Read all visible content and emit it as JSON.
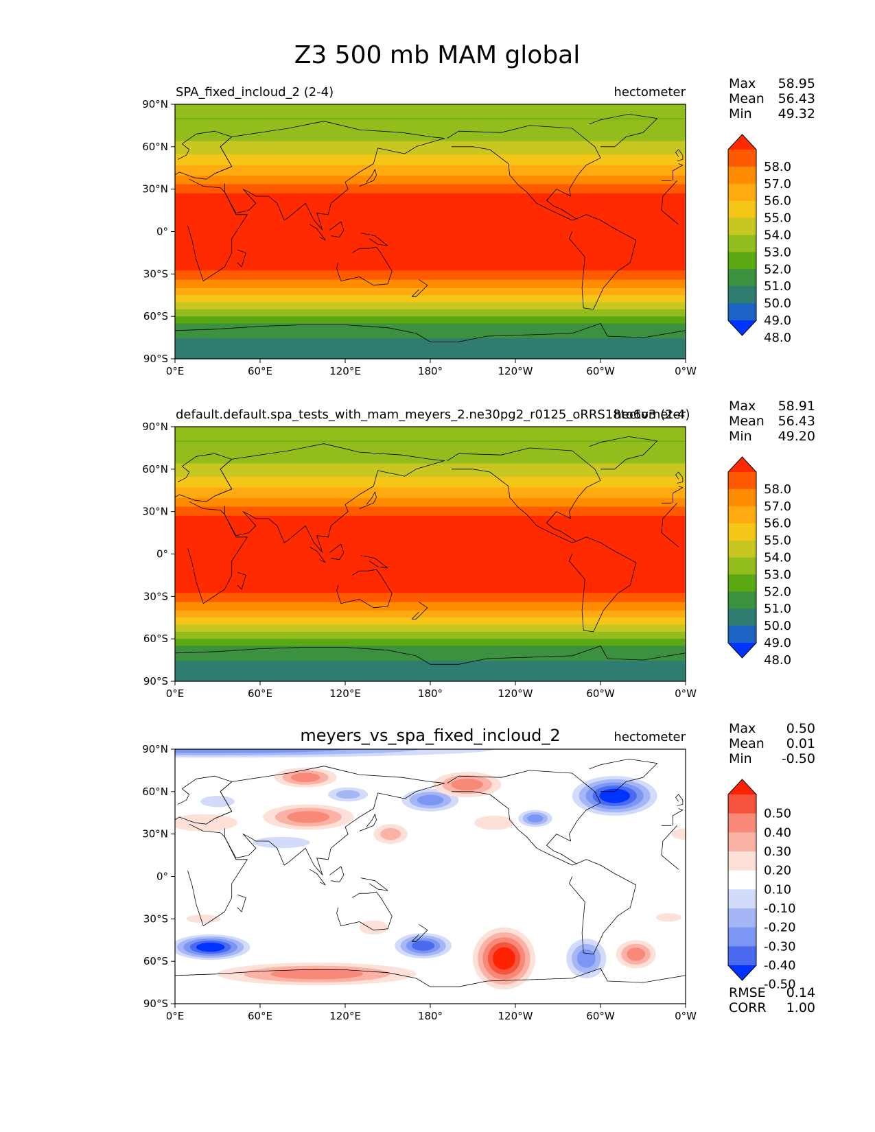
{
  "chart_data": {
    "type": "heatmap",
    "title": "Z3 500 mb MAM global",
    "x_ticks": [
      "0°E",
      "60°E",
      "120°E",
      "180°",
      "120°W",
      "60°W",
      "0°W"
    ],
    "y_ticks": [
      "90°N",
      "60°N",
      "30°N",
      "0°",
      "30°S",
      "60°S",
      "90°S"
    ],
    "xlim": [
      0,
      360
    ],
    "ylim": [
      -90,
      90
    ],
    "panels": [
      {
        "id": "test",
        "left_title": "SPA_fixed_incloud_2 (2-4)",
        "center_title": "",
        "units": "hectometer",
        "stats": [
          {
            "label": "Max",
            "value": "58.95"
          },
          {
            "label": "Mean",
            "value": "56.43"
          },
          {
            "label": "Min",
            "value": "49.32"
          }
        ],
        "levels": [
          "58.0",
          "57.0",
          "56.0",
          "55.0",
          "54.0",
          "53.0",
          "52.0",
          "51.0",
          "50.0",
          "49.0",
          "48.0"
        ],
        "colors": [
          "#ff2a00",
          "#ff5a00",
          "#ff8c00",
          "#ffaa11",
          "#f5c518",
          "#c8c620",
          "#93bd1c",
          "#5aa814",
          "#3b9140",
          "#2e7d70",
          "#1c63c4",
          "#0033ff"
        ],
        "zonal_profile": [
          {
            "lat": 90,
            "value": 52.2
          },
          {
            "lat": 80,
            "value": 52.0
          },
          {
            "lat": 70,
            "value": 52.6
          },
          {
            "lat": 60,
            "value": 53.3
          },
          {
            "lat": 50,
            "value": 54.6
          },
          {
            "lat": 45,
            "value": 55.3
          },
          {
            "lat": 40,
            "value": 56.0
          },
          {
            "lat": 35,
            "value": 56.8
          },
          {
            "lat": 30,
            "value": 57.6
          },
          {
            "lat": 25,
            "value": 58.3
          },
          {
            "lat": 0,
            "value": 58.8
          },
          {
            "lat": -25,
            "value": 58.3
          },
          {
            "lat": -30,
            "value": 57.6
          },
          {
            "lat": -35,
            "value": 56.8
          },
          {
            "lat": -40,
            "value": 56.0
          },
          {
            "lat": -45,
            "value": 55.0
          },
          {
            "lat": -50,
            "value": 54.0
          },
          {
            "lat": -55,
            "value": 53.0
          },
          {
            "lat": -60,
            "value": 52.0
          },
          {
            "lat": -65,
            "value": 51.0
          },
          {
            "lat": -72,
            "value": 50.3
          },
          {
            "lat": -80,
            "value": 49.6
          },
          {
            "lat": -90,
            "value": 49.4
          }
        ]
      },
      {
        "id": "reference",
        "left_title": "default.default.spa_tests_with_mam_meyers_2.ne30pg2_r0125_oRRS18to6v3 (2-4)",
        "center_title": "",
        "units": "hectometer",
        "stats": [
          {
            "label": "Max",
            "value": "58.91"
          },
          {
            "label": "Mean",
            "value": "56.43"
          },
          {
            "label": "Min",
            "value": "49.20"
          }
        ],
        "levels": [
          "58.0",
          "57.0",
          "56.0",
          "55.0",
          "54.0",
          "53.0",
          "52.0",
          "51.0",
          "50.0",
          "49.0",
          "48.0"
        ],
        "colors": [
          "#ff2a00",
          "#ff5a00",
          "#ff8c00",
          "#ffaa11",
          "#f5c518",
          "#c8c620",
          "#93bd1c",
          "#5aa814",
          "#3b9140",
          "#2e7d70",
          "#1c63c4",
          "#0033ff"
        ],
        "zonal_profile": [
          {
            "lat": 90,
            "value": 52.2
          },
          {
            "lat": 80,
            "value": 52.0
          },
          {
            "lat": 70,
            "value": 52.6
          },
          {
            "lat": 60,
            "value": 53.3
          },
          {
            "lat": 50,
            "value": 54.6
          },
          {
            "lat": 45,
            "value": 55.3
          },
          {
            "lat": 40,
            "value": 56.0
          },
          {
            "lat": 35,
            "value": 56.8
          },
          {
            "lat": 30,
            "value": 57.6
          },
          {
            "lat": 25,
            "value": 58.3
          },
          {
            "lat": 0,
            "value": 58.8
          },
          {
            "lat": -25,
            "value": 58.3
          },
          {
            "lat": -30,
            "value": 57.6
          },
          {
            "lat": -35,
            "value": 56.8
          },
          {
            "lat": -40,
            "value": 56.0
          },
          {
            "lat": -45,
            "value": 55.0
          },
          {
            "lat": -50,
            "value": 54.0
          },
          {
            "lat": -55,
            "value": 53.0
          },
          {
            "lat": -60,
            "value": 52.0
          },
          {
            "lat": -65,
            "value": 51.0
          },
          {
            "lat": -72,
            "value": 50.3
          },
          {
            "lat": -80,
            "value": 49.6
          },
          {
            "lat": -90,
            "value": 49.3
          }
        ]
      },
      {
        "id": "difference",
        "left_title": "",
        "center_title": "meyers_vs_spa_fixed_incloud_2",
        "units": "hectometer",
        "stats": [
          {
            "label": "Max",
            "value": "0.50"
          },
          {
            "label": "Mean",
            "value": "0.01"
          },
          {
            "label": "Min",
            "value": "-0.50"
          }
        ],
        "levels": [
          "0.50",
          "0.40",
          "0.30",
          "0.20",
          "0.10",
          "-0.10",
          "-0.20",
          "-0.30",
          "-0.40",
          "-0.50"
        ],
        "colors": [
          "#ff2200",
          "#f4553c",
          "#f88877",
          "#fbb2a5",
          "#fde0d8",
          "#ffffff",
          "#d2dbfa",
          "#a5b6f7",
          "#7c96f4",
          "#4a6bf0",
          "#0033ff"
        ],
        "anomalies": [
          {
            "lon": 25,
            "lat": 90,
            "rx": 200,
            "ry": 6,
            "value": -0.25
          },
          {
            "lon": 310,
            "lat": 57,
            "rx": 30,
            "ry": 14,
            "value": -0.45
          },
          {
            "lon": 180,
            "lat": 54,
            "rx": 20,
            "ry": 8,
            "value": -0.35
          },
          {
            "lon": 122,
            "lat": 58,
            "rx": 14,
            "ry": 5,
            "value": -0.18
          },
          {
            "lon": 254,
            "lat": 41,
            "rx": 12,
            "ry": 6,
            "value": -0.25
          },
          {
            "lon": 30,
            "lat": 53,
            "rx": 12,
            "ry": 4,
            "value": -0.15
          },
          {
            "lon": 75,
            "lat": 24,
            "rx": 20,
            "ry": 4,
            "value": -0.15
          },
          {
            "lon": 25,
            "lat": -50,
            "rx": 28,
            "ry": 9,
            "value": -0.45
          },
          {
            "lon": 175,
            "lat": -49,
            "rx": 20,
            "ry": 9,
            "value": -0.4
          },
          {
            "lon": 290,
            "lat": -58,
            "rx": 14,
            "ry": 14,
            "value": -0.35
          },
          {
            "lon": 94,
            "lat": 42,
            "rx": 32,
            "ry": 9,
            "value": 0.35
          },
          {
            "lon": 92,
            "lat": 70,
            "rx": 22,
            "ry": 7,
            "value": 0.3
          },
          {
            "lon": 206,
            "lat": 65,
            "rx": 24,
            "ry": 9,
            "value": 0.3
          },
          {
            "lon": 152,
            "lat": 30,
            "rx": 12,
            "ry": 7,
            "value": 0.2
          },
          {
            "lon": 225,
            "lat": 38,
            "rx": 14,
            "ry": 5,
            "value": 0.15
          },
          {
            "lon": 20,
            "lat": 38,
            "rx": 24,
            "ry": 6,
            "value": 0.15
          },
          {
            "lon": 232,
            "lat": -58,
            "rx": 22,
            "ry": 22,
            "value": 0.45
          },
          {
            "lon": 100,
            "lat": -69,
            "rx": 70,
            "ry": 8,
            "value": 0.25
          },
          {
            "lon": 325,
            "lat": -55,
            "rx": 14,
            "ry": 10,
            "value": 0.25
          },
          {
            "lon": 140,
            "lat": -36,
            "rx": 10,
            "ry": 5,
            "value": 0.15
          },
          {
            "lon": 348,
            "lat": -29,
            "rx": 9,
            "ry": 3,
            "value": 0.15
          },
          {
            "lon": 20,
            "lat": -30,
            "rx": 12,
            "ry": 3,
            "value": 0.15
          },
          {
            "lon": 360,
            "lat": 30,
            "rx": 10,
            "ry": 4,
            "value": 0.15
          }
        ],
        "extra_stats": [
          {
            "label": "RMSE",
            "value": "0.14"
          },
          {
            "label": "CORR",
            "value": "1.00"
          }
        ]
      }
    ]
  }
}
